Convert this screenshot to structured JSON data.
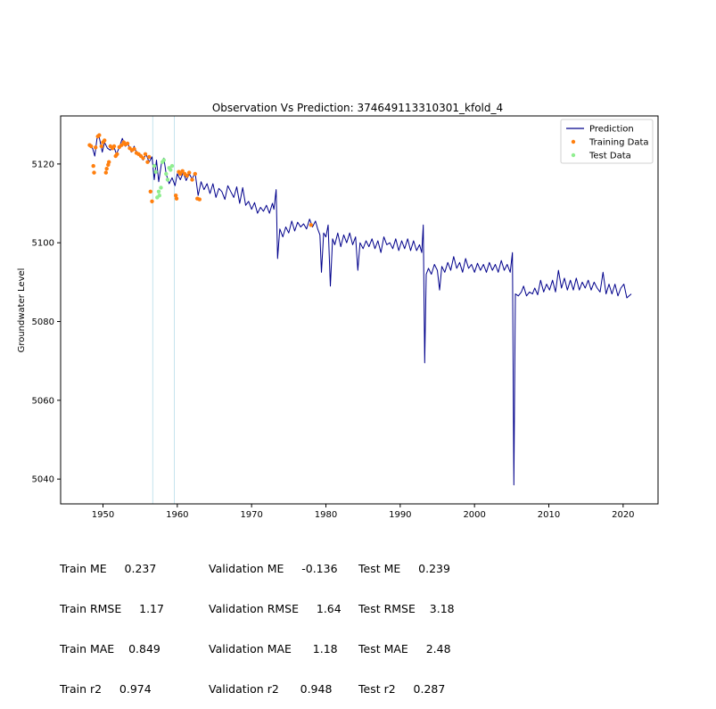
{
  "chart_data": {
    "type": "line",
    "title": "Observation Vs Prediction: 374649113310301_kfold_4",
    "xlabel": "",
    "ylabel": "Groundwater Level",
    "xlim": [
      1944.3,
      2024.7
    ],
    "ylim": [
      5033.7,
      5132.2
    ],
    "xticks": [
      1950,
      1960,
      1970,
      1980,
      1990,
      2000,
      2010,
      2020
    ],
    "yticks": [
      5040,
      5060,
      5080,
      5100,
      5120
    ],
    "legend_position": "top-right",
    "grid": false,
    "vertical_lines": [
      1956.7,
      1959.6
    ],
    "series": [
      {
        "name": "Prediction",
        "kind": "line",
        "color": "#00008b",
        "points": [
          [
            1948.2,
            5124.5
          ],
          [
            1948.6,
            5124.0
          ],
          [
            1948.9,
            5122.0
          ],
          [
            1949.2,
            5126.5
          ],
          [
            1949.5,
            5126.8
          ],
          [
            1949.9,
            5123.0
          ],
          [
            1950.2,
            5125.5
          ],
          [
            1950.6,
            5124.0
          ],
          [
            1951.0,
            5123.5
          ],
          [
            1951.4,
            5124.8
          ],
          [
            1951.8,
            5122.5
          ],
          [
            1952.2,
            5124.2
          ],
          [
            1952.6,
            5126.5
          ],
          [
            1953.0,
            5124.5
          ],
          [
            1953.4,
            5125.0
          ],
          [
            1953.8,
            5123.0
          ],
          [
            1954.2,
            5124.5
          ],
          [
            1954.6,
            5122.5
          ],
          [
            1955.0,
            5122.5
          ],
          [
            1955.4,
            5121.0
          ],
          [
            1955.8,
            5122.5
          ],
          [
            1956.2,
            5120.5
          ],
          [
            1956.6,
            5121.8
          ],
          [
            1956.9,
            5116.0
          ],
          [
            1957.2,
            5121.0
          ],
          [
            1957.5,
            5115.5
          ],
          [
            1957.9,
            5120.5
          ],
          [
            1958.2,
            5121.5
          ],
          [
            1958.5,
            5117.5
          ],
          [
            1958.9,
            5115.0
          ],
          [
            1959.3,
            5116.5
          ],
          [
            1959.7,
            5114.5
          ],
          [
            1960.0,
            5117.5
          ],
          [
            1960.4,
            5116.0
          ],
          [
            1960.8,
            5117.8
          ],
          [
            1961.2,
            5115.8
          ],
          [
            1961.6,
            5117.5
          ],
          [
            1962.0,
            5116.2
          ],
          [
            1962.4,
            5117.8
          ],
          [
            1962.8,
            5112.0
          ],
          [
            1963.2,
            5115.5
          ],
          [
            1963.6,
            5113.5
          ],
          [
            1964.0,
            5115.0
          ],
          [
            1964.4,
            5112.5
          ],
          [
            1964.8,
            5115.0
          ],
          [
            1965.2,
            5111.5
          ],
          [
            1965.6,
            5113.8
          ],
          [
            1966.0,
            5113.0
          ],
          [
            1966.4,
            5111.0
          ],
          [
            1966.8,
            5114.5
          ],
          [
            1967.2,
            5113.0
          ],
          [
            1967.6,
            5111.5
          ],
          [
            1968.0,
            5114.2
          ],
          [
            1968.4,
            5110.0
          ],
          [
            1968.8,
            5114.0
          ],
          [
            1969.2,
            5109.5
          ],
          [
            1969.6,
            5110.5
          ],
          [
            1970.0,
            5108.5
          ],
          [
            1970.4,
            5110.2
          ],
          [
            1970.8,
            5107.5
          ],
          [
            1971.2,
            5109.0
          ],
          [
            1971.6,
            5108.0
          ],
          [
            1972.0,
            5109.5
          ],
          [
            1972.4,
            5107.5
          ],
          [
            1972.8,
            5110.0
          ],
          [
            1973.0,
            5108.5
          ],
          [
            1973.3,
            5113.5
          ],
          [
            1973.5,
            5096.0
          ],
          [
            1973.8,
            5103.5
          ],
          [
            1974.2,
            5101.5
          ],
          [
            1974.6,
            5104.0
          ],
          [
            1975.0,
            5102.5
          ],
          [
            1975.4,
            5105.5
          ],
          [
            1975.8,
            5103.0
          ],
          [
            1976.2,
            5105.2
          ],
          [
            1976.6,
            5104.0
          ],
          [
            1977.0,
            5104.8
          ],
          [
            1977.4,
            5103.5
          ],
          [
            1977.8,
            5106.0
          ],
          [
            1978.2,
            5104.0
          ],
          [
            1978.6,
            5105.5
          ],
          [
            1978.9,
            5103.5
          ],
          [
            1979.2,
            5102.0
          ],
          [
            1979.4,
            5092.5
          ],
          [
            1979.7,
            5102.5
          ],
          [
            1980.0,
            5101.5
          ],
          [
            1980.3,
            5104.5
          ],
          [
            1980.6,
            5089.0
          ],
          [
            1980.9,
            5101.0
          ],
          [
            1981.2,
            5099.5
          ],
          [
            1981.6,
            5102.5
          ],
          [
            1982.0,
            5099.0
          ],
          [
            1982.4,
            5102.0
          ],
          [
            1982.8,
            5100.0
          ],
          [
            1983.2,
            5102.5
          ],
          [
            1983.6,
            5099.5
          ],
          [
            1984.0,
            5101.5
          ],
          [
            1984.3,
            5093.0
          ],
          [
            1984.6,
            5100.0
          ],
          [
            1985.0,
            5098.5
          ],
          [
            1985.4,
            5100.5
          ],
          [
            1985.8,
            5099.0
          ],
          [
            1986.2,
            5101.0
          ],
          [
            1986.6,
            5098.5
          ],
          [
            1987.0,
            5100.5
          ],
          [
            1987.4,
            5097.5
          ],
          [
            1987.8,
            5101.5
          ],
          [
            1988.2,
            5099.5
          ],
          [
            1988.6,
            5100.0
          ],
          [
            1989.0,
            5098.5
          ],
          [
            1989.4,
            5101.0
          ],
          [
            1989.8,
            5098.0
          ],
          [
            1990.2,
            5100.5
          ],
          [
            1990.6,
            5098.5
          ],
          [
            1991.0,
            5101.0
          ],
          [
            1991.4,
            5098.0
          ],
          [
            1991.8,
            5100.5
          ],
          [
            1992.2,
            5098.0
          ],
          [
            1992.6,
            5099.5
          ],
          [
            1992.9,
            5097.5
          ],
          [
            1993.1,
            5104.5
          ],
          [
            1993.3,
            5069.5
          ],
          [
            1993.5,
            5092.0
          ],
          [
            1993.8,
            5093.5
          ],
          [
            1994.2,
            5092.0
          ],
          [
            1994.6,
            5094.5
          ],
          [
            1995.0,
            5093.0
          ],
          [
            1995.3,
            5088.0
          ],
          [
            1995.6,
            5094.0
          ],
          [
            1996.0,
            5092.5
          ],
          [
            1996.4,
            5095.0
          ],
          [
            1996.8,
            5093.0
          ],
          [
            1997.2,
            5096.5
          ],
          [
            1997.6,
            5093.5
          ],
          [
            1998.0,
            5095.0
          ],
          [
            1998.4,
            5092.5
          ],
          [
            1998.8,
            5096.0
          ],
          [
            1999.2,
            5093.5
          ],
          [
            1999.6,
            5094.5
          ],
          [
            2000.0,
            5092.5
          ],
          [
            2000.4,
            5094.8
          ],
          [
            2000.8,
            5093.0
          ],
          [
            2001.2,
            5094.5
          ],
          [
            2001.6,
            5092.5
          ],
          [
            2002.0,
            5095.0
          ],
          [
            2002.4,
            5093.0
          ],
          [
            2002.8,
            5094.5
          ],
          [
            2003.2,
            5092.5
          ],
          [
            2003.6,
            5095.5
          ],
          [
            2004.0,
            5093.0
          ],
          [
            2004.4,
            5094.5
          ],
          [
            2004.8,
            5092.5
          ],
          [
            2005.1,
            5097.5
          ],
          [
            2005.3,
            5038.5
          ],
          [
            2005.5,
            5087.0
          ],
          [
            2005.9,
            5086.5
          ],
          [
            2006.3,
            5087.5
          ],
          [
            2006.6,
            5089.0
          ],
          [
            2007.0,
            5086.5
          ],
          [
            2007.4,
            5087.5
          ],
          [
            2007.8,
            5087.0
          ],
          [
            2008.1,
            5088.5
          ],
          [
            2008.5,
            5086.8
          ],
          [
            2008.9,
            5090.5
          ],
          [
            2009.3,
            5087.5
          ],
          [
            2009.7,
            5089.5
          ],
          [
            2010.1,
            5088.0
          ],
          [
            2010.5,
            5090.5
          ],
          [
            2010.9,
            5087.5
          ],
          [
            2011.3,
            5093.0
          ],
          [
            2011.7,
            5088.5
          ],
          [
            2012.1,
            5091.0
          ],
          [
            2012.5,
            5088.0
          ],
          [
            2012.9,
            5090.5
          ],
          [
            2013.3,
            5088.0
          ],
          [
            2013.7,
            5091.0
          ],
          [
            2014.1,
            5088.0
          ],
          [
            2014.5,
            5090.0
          ],
          [
            2014.9,
            5088.5
          ],
          [
            2015.3,
            5090.5
          ],
          [
            2015.7,
            5088.0
          ],
          [
            2016.1,
            5090.0
          ],
          [
            2016.5,
            5088.5
          ],
          [
            2016.9,
            5087.5
          ],
          [
            2017.3,
            5092.5
          ],
          [
            2017.7,
            5087.0
          ],
          [
            2018.1,
            5089.5
          ],
          [
            2018.5,
            5087.0
          ],
          [
            2018.9,
            5089.5
          ],
          [
            2019.3,
            5086.5
          ],
          [
            2019.7,
            5088.5
          ],
          [
            2020.1,
            5089.5
          ],
          [
            2020.5,
            5086.0
          ],
          [
            2020.8,
            5086.5
          ],
          [
            2021.1,
            5087.0
          ]
        ]
      },
      {
        "name": "Training Data",
        "kind": "scatter",
        "color": "#ff7f0e",
        "points": [
          [
            1948.2,
            5124.8
          ],
          [
            1948.4,
            5124.5
          ],
          [
            1948.7,
            5119.5
          ],
          [
            1948.8,
            5117.8
          ],
          [
            1949.0,
            5124.2
          ],
          [
            1949.3,
            5127.0
          ],
          [
            1949.5,
            5127.3
          ],
          [
            1949.8,
            5124.5
          ],
          [
            1950.0,
            5125.5
          ],
          [
            1950.2,
            5126.0
          ],
          [
            1950.4,
            5117.8
          ],
          [
            1950.5,
            5118.8
          ],
          [
            1950.7,
            5119.8
          ],
          [
            1950.8,
            5120.5
          ],
          [
            1951.0,
            5124.5
          ],
          [
            1951.3,
            5124.0
          ],
          [
            1951.5,
            5124.5
          ],
          [
            1951.7,
            5122.0
          ],
          [
            1951.9,
            5122.5
          ],
          [
            1952.2,
            5124.3
          ],
          [
            1952.5,
            5124.8
          ],
          [
            1952.8,
            5125.5
          ],
          [
            1953.0,
            5125.0
          ],
          [
            1953.3,
            5125.2
          ],
          [
            1953.6,
            5124.0
          ],
          [
            1953.9,
            5123.5
          ],
          [
            1954.2,
            5123.8
          ],
          [
            1954.5,
            5122.8
          ],
          [
            1954.8,
            5122.5
          ],
          [
            1955.1,
            5122.0
          ],
          [
            1955.4,
            5121.5
          ],
          [
            1955.7,
            5122.5
          ],
          [
            1956.0,
            5120.5
          ],
          [
            1956.2,
            5121.8
          ],
          [
            1956.4,
            5113.0
          ],
          [
            1956.6,
            5110.5
          ],
          [
            1959.8,
            5112.0
          ],
          [
            1959.9,
            5111.2
          ],
          [
            1960.2,
            5118.0
          ],
          [
            1960.4,
            5117.5
          ],
          [
            1960.7,
            5118.2
          ],
          [
            1961.0,
            5117.5
          ],
          [
            1961.3,
            5117.0
          ],
          [
            1961.6,
            5117.8
          ],
          [
            1962.0,
            5116.0
          ],
          [
            1962.4,
            5117.5
          ],
          [
            1962.7,
            5111.2
          ],
          [
            1963.0,
            5111.0
          ],
          [
            1978.0,
            5104.5
          ]
        ]
      },
      {
        "name": "Test Data",
        "kind": "scatter",
        "color": "#90ee90",
        "points": [
          [
            1956.9,
            5119.5
          ],
          [
            1957.1,
            5118.0
          ],
          [
            1957.3,
            5111.5
          ],
          [
            1957.5,
            5113.0
          ],
          [
            1957.6,
            5112.0
          ],
          [
            1957.8,
            5114.0
          ],
          [
            1958.0,
            5120.5
          ],
          [
            1958.2,
            5121.0
          ],
          [
            1958.5,
            5117.5
          ],
          [
            1958.7,
            5116.0
          ],
          [
            1958.9,
            5119.0
          ],
          [
            1959.1,
            5118.5
          ],
          [
            1959.3,
            5119.5
          ]
        ]
      }
    ],
    "legend": [
      "Prediction",
      "Training Data",
      "Test Data"
    ]
  },
  "metrics": {
    "train": [
      "Train ME     0.237",
      "Train RMSE     1.17",
      "Train MAE    0.849",
      "Train r2     0.974"
    ],
    "validation": [
      "Validation ME     -0.136",
      "Validation RMSE     1.64",
      "Validation MAE      1.18",
      "Validation r2      0.948"
    ],
    "test": [
      "Test ME     0.239",
      "Test RMSE    3.18",
      "Test MAE     2.48",
      "Test r2     0.287"
    ]
  }
}
